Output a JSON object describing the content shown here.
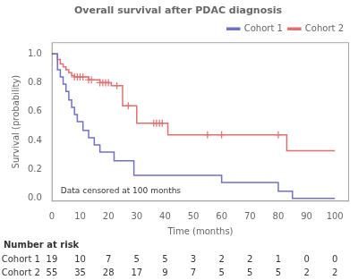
{
  "chart_data": {
    "type": "line",
    "title": "Overall survival after PDAC diagnosis",
    "xlabel": "Time (months)",
    "ylabel": "Survival (probability)",
    "annotation": "Data censored at 100 months",
    "xlim": [
      0,
      105
    ],
    "ylim": [
      -0.02,
      1.08
    ],
    "xticks": [
      0,
      10,
      20,
      30,
      40,
      50,
      60,
      70,
      80,
      90,
      100
    ],
    "yticks": [
      {
        "value": 0.0,
        "label": "0.0"
      },
      0.2,
      0.4,
      0.6,
      0.8,
      {
        "value": 1.0,
        "label": "1.0"
      }
    ],
    "grid": false,
    "legend": "upper right",
    "series": [
      {
        "name": "Cohort 1",
        "color": "#7070c8",
        "line_style": "steps-post",
        "x": [
          0,
          1,
          2,
          3,
          4,
          5,
          6,
          7,
          8,
          9,
          10,
          11,
          12,
          13,
          14,
          15,
          16,
          17,
          18,
          19,
          20,
          21,
          22,
          23,
          24,
          25,
          26,
          27,
          28,
          29,
          30,
          35,
          40,
          45,
          55,
          60,
          70,
          75,
          80,
          85,
          100
        ],
        "values": [
          1.0,
          1.0,
          0.89,
          0.84,
          0.79,
          0.74,
          0.68,
          0.63,
          0.58,
          0.53,
          0.53,
          0.47,
          0.47,
          0.42,
          0.42,
          0.37,
          0.37,
          0.32,
          0.32,
          0.32,
          0.32,
          0.32,
          0.26,
          0.26,
          0.26,
          0.26,
          0.26,
          0.26,
          0.26,
          0.16,
          0.16,
          0.16,
          0.16,
          0.16,
          0.16,
          0.11,
          0.11,
          0.11,
          0.05,
          0.0,
          0.0
        ]
      },
      {
        "name": "Cohort 2",
        "color": "#e07070",
        "line_style": "steps-post",
        "x": [
          0,
          1,
          2,
          3,
          4,
          5,
          6,
          7,
          8,
          9,
          10,
          11,
          12,
          13,
          14,
          15,
          16,
          17,
          18,
          19,
          20,
          21,
          22,
          23,
          24,
          25,
          26,
          27,
          28,
          29,
          30,
          31,
          32,
          33,
          34,
          35,
          36,
          37,
          38,
          39,
          40,
          41,
          55,
          60,
          80,
          83,
          100
        ],
        "values": [
          1.0,
          1.0,
          0.96,
          0.93,
          0.91,
          0.89,
          0.87,
          0.85,
          0.84,
          0.84,
          0.84,
          0.84,
          0.84,
          0.82,
          0.82,
          0.82,
          0.82,
          0.8,
          0.8,
          0.8,
          0.8,
          0.78,
          0.78,
          0.78,
          0.78,
          0.64,
          0.64,
          0.64,
          0.64,
          0.64,
          0.52,
          0.52,
          0.52,
          0.52,
          0.52,
          0.52,
          0.52,
          0.52,
          0.52,
          0.52,
          0.52,
          0.44,
          0.44,
          0.44,
          0.44,
          0.33,
          0.33
        ]
      },
      {
        "type": "scatter",
        "marker": "+",
        "color": "#e07070",
        "x": [
          8,
          9,
          10,
          11,
          13,
          14,
          17,
          18,
          19,
          20,
          23,
          27,
          36,
          37,
          38,
          39,
          55,
          60,
          80
        ],
        "values": [
          0.84,
          0.84,
          0.84,
          0.84,
          0.82,
          0.82,
          0.8,
          0.8,
          0.8,
          0.8,
          0.78,
          0.64,
          0.52,
          0.52,
          0.52,
          0.52,
          0.44,
          0.44,
          0.44
        ]
      }
    ],
    "risk_table": {
      "title": "Number at risk",
      "x": [
        0,
        10,
        20,
        30,
        40,
        50,
        60,
        70,
        80,
        90,
        100
      ],
      "rows": [
        {
          "name": "Cohort 1",
          "values": [
            19,
            10,
            7,
            5,
            5,
            3,
            2,
            2,
            1,
            0,
            0
          ]
        },
        {
          "name": "Cohort 2",
          "values": [
            55,
            35,
            28,
            17,
            9,
            7,
            5,
            5,
            5,
            2,
            2
          ]
        }
      ]
    }
  }
}
